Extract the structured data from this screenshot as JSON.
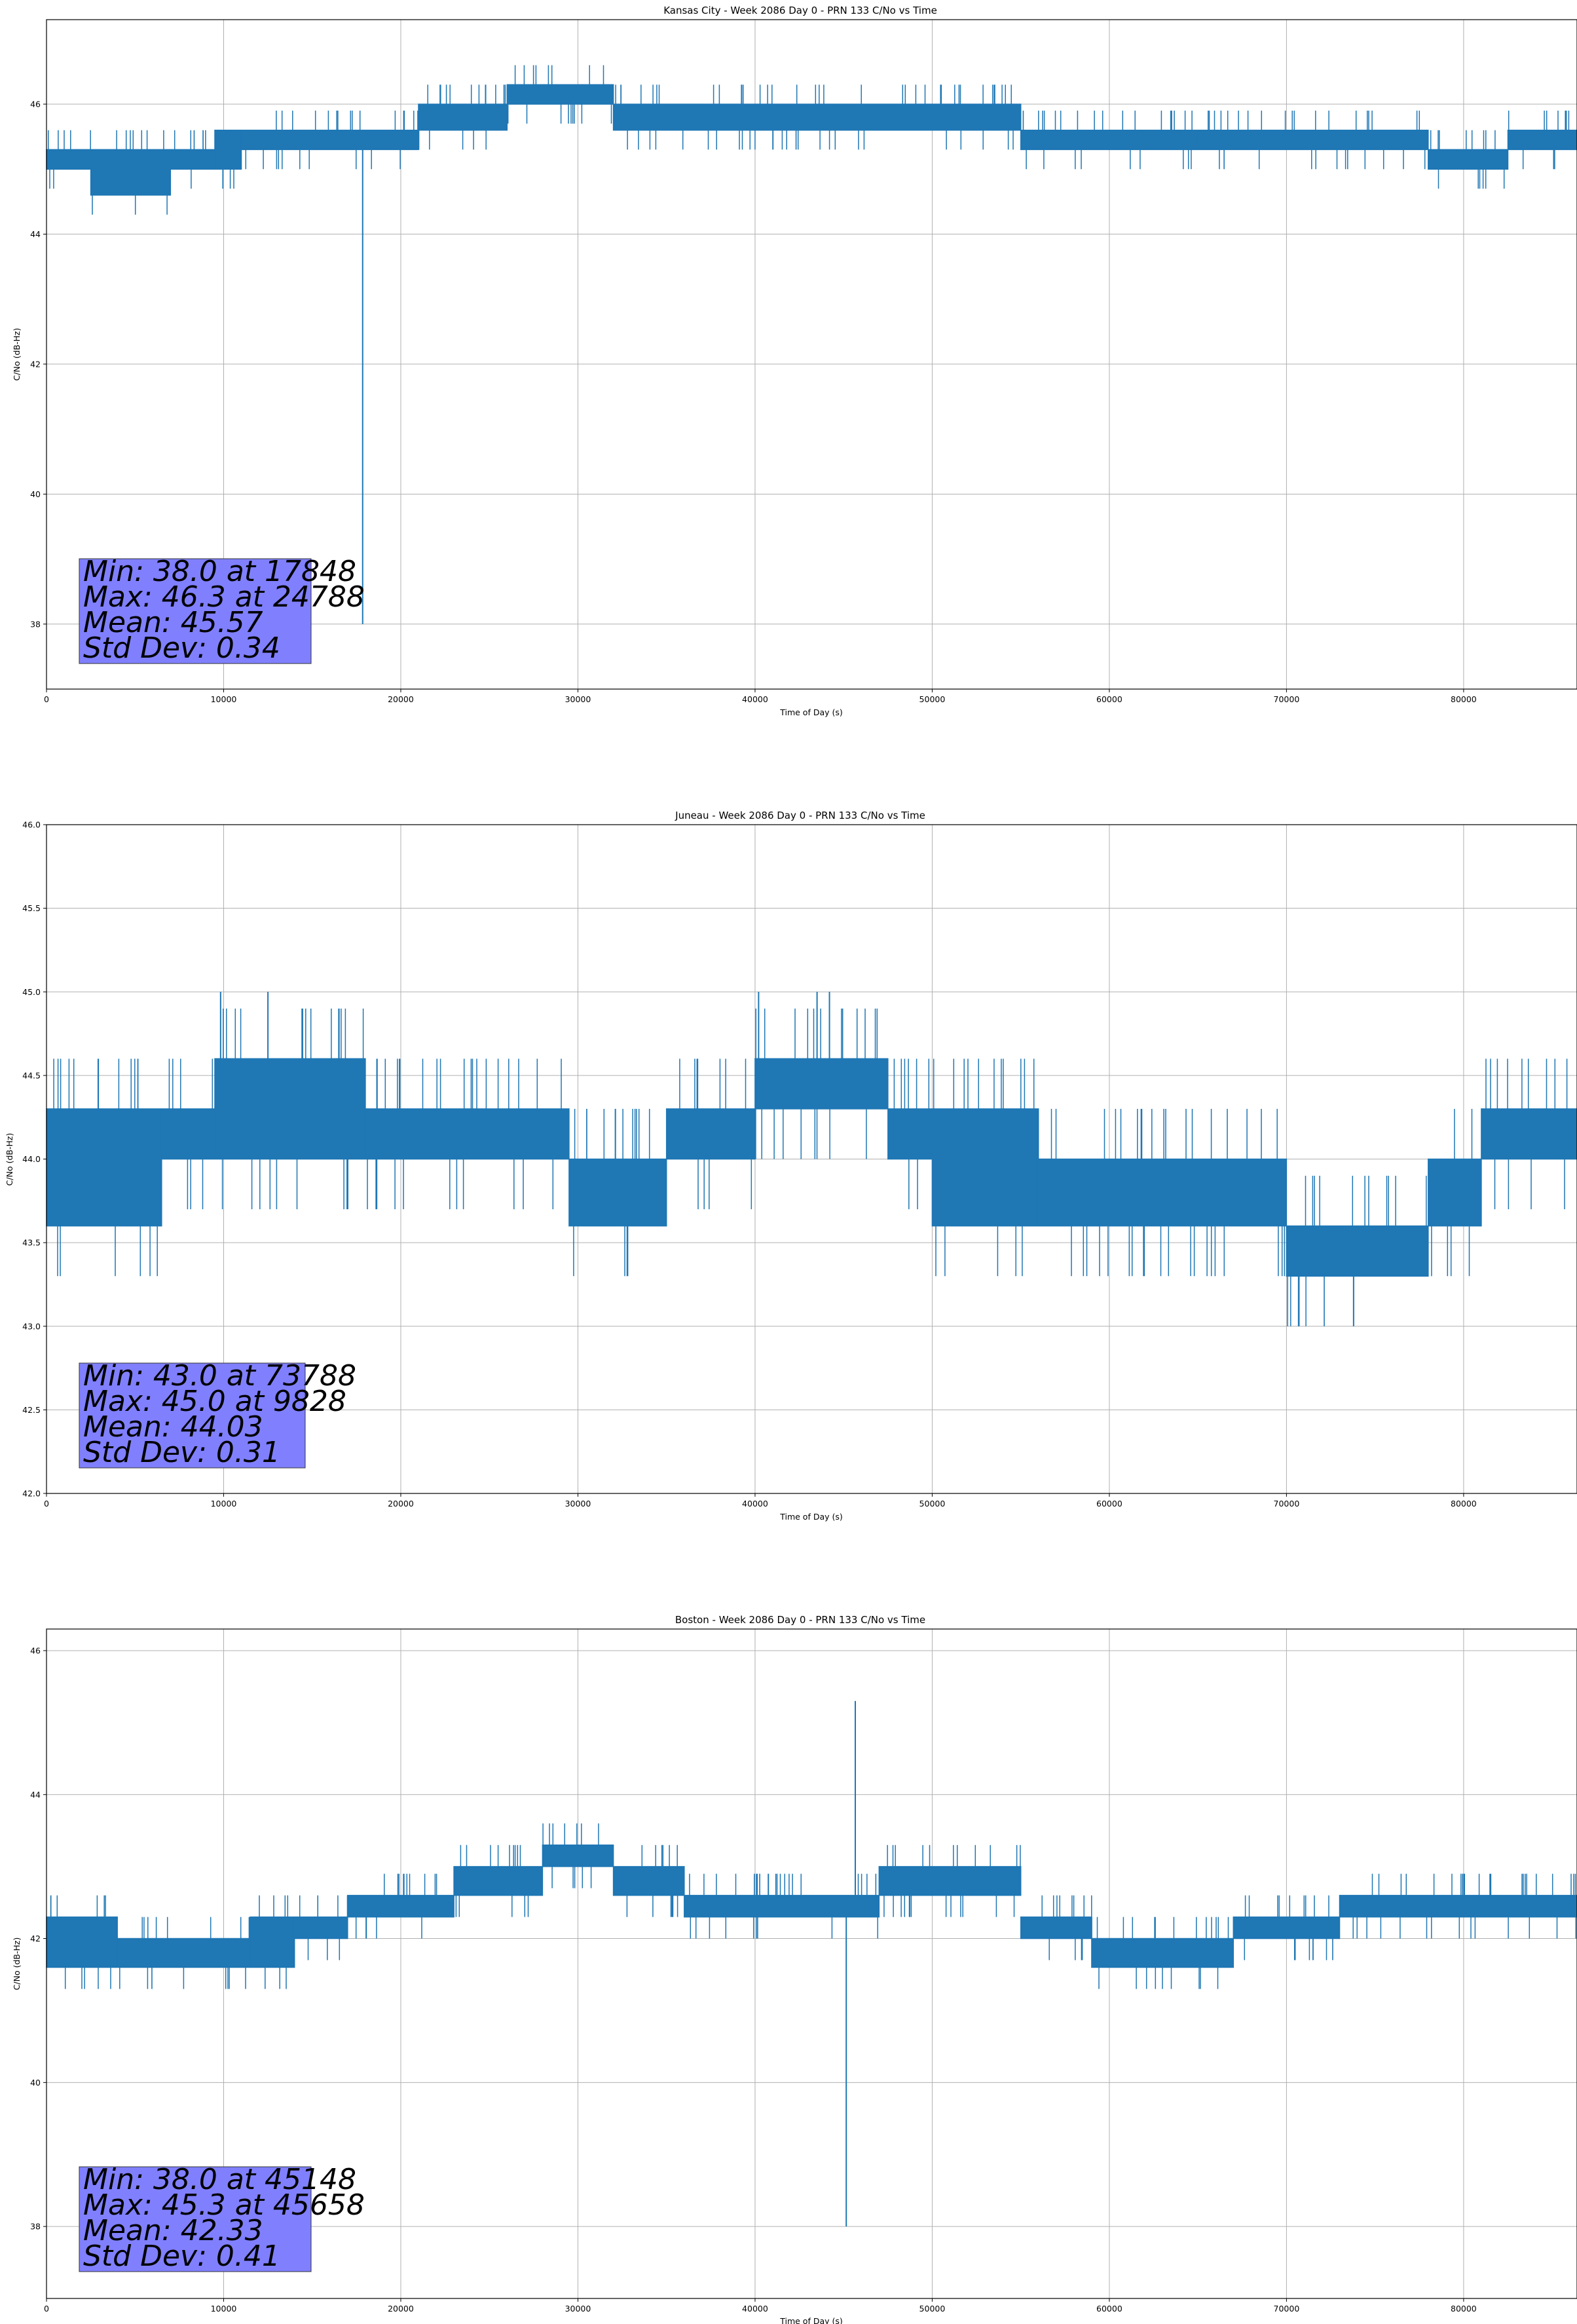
{
  "figure": {
    "background": "#ffffff"
  },
  "style": {
    "line_color": "#1f77b4",
    "grid_color": "#b0b0b0",
    "stats_box_color": "#8080ff"
  },
  "chart_data": [
    {
      "type": "line",
      "title": "Kansas City - Week 2086 Day 0 - PRN 133 C/No vs Time",
      "xlabel": "Time of Day (s)",
      "ylabel": "C/No (dB-Hz)",
      "xlim": [
        0,
        86400
      ],
      "ylim": [
        37.0,
        47.3
      ],
      "xticks": [
        0,
        10000,
        20000,
        30000,
        40000,
        50000,
        60000,
        70000,
        80000
      ],
      "yticks": [
        38,
        40,
        42,
        44,
        46
      ],
      "grid": true,
      "series": [
        {
          "name": "C/No",
          "quant": 0.3,
          "segments": [
            {
              "x0": 0,
              "x1": 2500,
              "lo": 45.0,
              "hi": 45.3
            },
            {
              "x0": 2500,
              "x1": 7000,
              "lo": 44.6,
              "hi": 45.3
            },
            {
              "x0": 7000,
              "x1": 9500,
              "lo": 45.0,
              "hi": 45.3
            },
            {
              "x0": 9500,
              "x1": 11000,
              "lo": 45.0,
              "hi": 45.6
            },
            {
              "x0": 11000,
              "x1": 21000,
              "lo": 45.3,
              "hi": 45.6
            },
            {
              "x0": 21000,
              "x1": 26000,
              "lo": 45.6,
              "hi": 46.0
            },
            {
              "x0": 26000,
              "x1": 32000,
              "lo": 46.0,
              "hi": 46.3
            },
            {
              "x0": 32000,
              "x1": 55000,
              "lo": 45.6,
              "hi": 46.0
            },
            {
              "x0": 55000,
              "x1": 65000,
              "lo": 45.3,
              "hi": 45.6
            },
            {
              "x0": 65000,
              "x1": 78000,
              "lo": 45.3,
              "hi": 45.6
            },
            {
              "x0": 78000,
              "x1": 82500,
              "lo": 45.0,
              "hi": 45.3
            },
            {
              "x0": 82500,
              "x1": 86400,
              "lo": 45.3,
              "hi": 45.6
            }
          ],
          "events": [
            {
              "x": 17848,
              "y": 38.0
            },
            {
              "x": 24788,
              "y": 46.3
            }
          ]
        }
      ],
      "annotation": [
        "Min: 38.0 at 17848",
        "Max: 46.3 at 24788",
        "Mean: 45.57",
        "Std Dev: 0.34"
      ]
    },
    {
      "type": "line",
      "title": "Juneau - Week 2086 Day 0 - PRN 133 C/No vs Time",
      "xlabel": "Time of Day (s)",
      "ylabel": "C/No (dB-Hz)",
      "xlim": [
        0,
        86400
      ],
      "ylim": [
        42.0,
        46.0
      ],
      "xticks": [
        0,
        10000,
        20000,
        30000,
        40000,
        50000,
        60000,
        70000,
        80000
      ],
      "yticks": [
        42.0,
        42.5,
        43.0,
        43.5,
        44.0,
        44.5,
        45.0,
        45.5,
        46.0
      ],
      "grid": true,
      "series": [
        {
          "name": "C/No",
          "quant": 0.3,
          "segments": [
            {
              "x0": 0,
              "x1": 6500,
              "lo": 43.6,
              "hi": 44.3
            },
            {
              "x0": 6500,
              "x1": 9500,
              "lo": 44.0,
              "hi": 44.3
            },
            {
              "x0": 9500,
              "x1": 18000,
              "lo": 44.0,
              "hi": 44.6
            },
            {
              "x0": 18000,
              "x1": 29500,
              "lo": 44.0,
              "hi": 44.3
            },
            {
              "x0": 29500,
              "x1": 35000,
              "lo": 43.6,
              "hi": 44.0
            },
            {
              "x0": 35000,
              "x1": 40000,
              "lo": 44.0,
              "hi": 44.3
            },
            {
              "x0": 40000,
              "x1": 47500,
              "lo": 44.3,
              "hi": 44.6
            },
            {
              "x0": 47500,
              "x1": 50000,
              "lo": 44.0,
              "hi": 44.3
            },
            {
              "x0": 50000,
              "x1": 56000,
              "lo": 43.6,
              "hi": 44.3
            },
            {
              "x0": 56000,
              "x1": 70000,
              "lo": 43.6,
              "hi": 44.0
            },
            {
              "x0": 70000,
              "x1": 78000,
              "lo": 43.3,
              "hi": 43.6
            },
            {
              "x0": 78000,
              "x1": 81000,
              "lo": 43.6,
              "hi": 44.0
            },
            {
              "x0": 81000,
              "x1": 86400,
              "lo": 44.0,
              "hi": 44.3
            }
          ],
          "events": [
            {
              "x": 73788,
              "y": 43.0
            },
            {
              "x": 9828,
              "y": 45.0
            },
            {
              "x": 12500,
              "y": 45.0
            },
            {
              "x": 40200,
              "y": 45.0
            },
            {
              "x": 43500,
              "y": 45.0
            },
            {
              "x": 44200,
              "y": 45.0
            }
          ]
        }
      ],
      "annotation": [
        "Min: 43.0 at 73788",
        "Max: 45.0 at 9828",
        "Mean: 44.03",
        "Std Dev: 0.31"
      ]
    },
    {
      "type": "line",
      "title": "Boston - Week 2086 Day 0 - PRN 133 C/No vs Time",
      "xlabel": "Time of Day (s)",
      "ylabel": "C/No (dB-Hz)",
      "xlim": [
        0,
        86400
      ],
      "ylim": [
        37.0,
        46.3
      ],
      "xticks": [
        0,
        10000,
        20000,
        30000,
        40000,
        50000,
        60000,
        70000,
        80000
      ],
      "yticks": [
        38,
        40,
        42,
        44,
        46
      ],
      "grid": true,
      "series": [
        {
          "name": "C/No",
          "quant": 0.3,
          "segments": [
            {
              "x0": 0,
              "x1": 4000,
              "lo": 41.6,
              "hi": 42.3
            },
            {
              "x0": 4000,
              "x1": 11500,
              "lo": 41.6,
              "hi": 42.0
            },
            {
              "x0": 11500,
              "x1": 14000,
              "lo": 41.6,
              "hi": 42.3
            },
            {
              "x0": 14000,
              "x1": 17000,
              "lo": 42.0,
              "hi": 42.3
            },
            {
              "x0": 17000,
              "x1": 23000,
              "lo": 42.3,
              "hi": 42.6
            },
            {
              "x0": 23000,
              "x1": 28000,
              "lo": 42.6,
              "hi": 43.0
            },
            {
              "x0": 28000,
              "x1": 32000,
              "lo": 43.0,
              "hi": 43.3
            },
            {
              "x0": 32000,
              "x1": 36000,
              "lo": 42.6,
              "hi": 43.0
            },
            {
              "x0": 36000,
              "x1": 47000,
              "lo": 42.3,
              "hi": 42.6
            },
            {
              "x0": 47000,
              "x1": 55000,
              "lo": 42.6,
              "hi": 43.0
            },
            {
              "x0": 55000,
              "x1": 59000,
              "lo": 42.0,
              "hi": 42.3
            },
            {
              "x0": 59000,
              "x1": 67000,
              "lo": 41.6,
              "hi": 42.0
            },
            {
              "x0": 67000,
              "x1": 73000,
              "lo": 42.0,
              "hi": 42.3
            },
            {
              "x0": 73000,
              "x1": 86400,
              "lo": 42.3,
              "hi": 42.6
            }
          ],
          "events": [
            {
              "x": 45148,
              "y": 38.0
            },
            {
              "x": 45658,
              "y": 45.3
            }
          ]
        }
      ],
      "annotation": [
        "Min: 38.0 at 45148",
        "Max: 45.3 at 45658",
        "Mean: 42.33",
        "Std Dev: 0.41"
      ]
    }
  ]
}
